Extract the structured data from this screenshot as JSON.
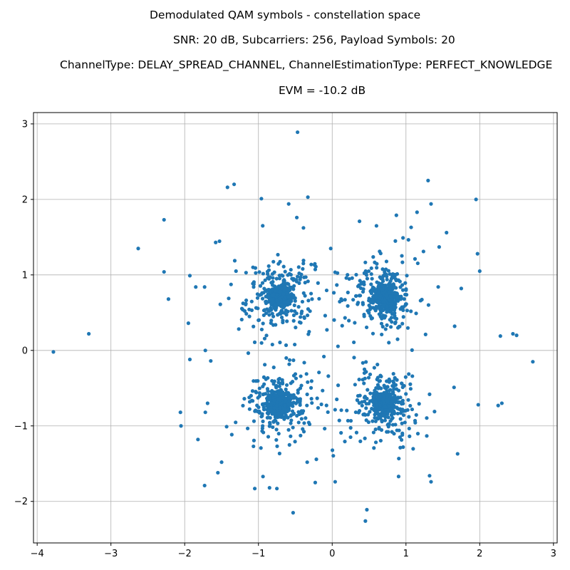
{
  "chart_data": {
    "type": "scatter",
    "title_lines": [
      "Demodulated QAM symbols - constellation space",
      "SNR: 20 dB, Subcarriers: 256, Payload Symbols: 20",
      "ChannelType: DELAY_SPREAD_CHANNEL, ChannelEstimationType: PERFECT_KNOWLEDGE",
      "EVM = -10.2 dB"
    ],
    "xlabel": "",
    "ylabel": "",
    "xlim": [
      -4.05,
      3.05
    ],
    "ylim": [
      -2.55,
      3.15
    ],
    "xticks": [
      -4,
      -3,
      -2,
      -1,
      0,
      1,
      2,
      3
    ],
    "yticks": [
      -2,
      -1,
      0,
      1,
      2,
      3
    ],
    "xtick_labels": [
      "−4",
      "−3",
      "−2",
      "−1",
      "0",
      "1",
      "2",
      "3"
    ],
    "ytick_labels": [
      "−2",
      "−1",
      "0",
      "1",
      "2",
      "3"
    ],
    "grid": true,
    "marker_color": "#1f77b4",
    "clusters": [
      {
        "center": [
          -0.71,
          0.71
        ]
      },
      {
        "center": [
          0.71,
          0.71
        ]
      },
      {
        "center": [
          -0.71,
          -0.71
        ]
      },
      {
        "center": [
          0.71,
          -0.71
        ]
      }
    ],
    "outliers": [
      [
        -3.78,
        -0.02
      ],
      [
        -3.3,
        0.22
      ],
      [
        -2.63,
        1.35
      ],
      [
        -2.28,
        1.73
      ],
      [
        -2.28,
        1.04
      ],
      [
        -2.22,
        0.68
      ],
      [
        -1.95,
        0.36
      ],
      [
        -1.93,
        0.99
      ],
      [
        -1.93,
        -0.12
      ],
      [
        -2.05,
        -1.0
      ],
      [
        -1.82,
        -1.18
      ],
      [
        -1.85,
        0.84
      ],
      [
        -1.73,
        0.84
      ],
      [
        -1.73,
        -1.79
      ],
      [
        -1.72,
        -0.82
      ],
      [
        -1.72,
        0.0
      ],
      [
        -1.58,
        1.43
      ],
      [
        -1.55,
        -1.62
      ],
      [
        -1.42,
        2.16
      ],
      [
        -1.33,
        2.2
      ],
      [
        -0.96,
        2.01
      ],
      [
        -0.59,
        1.94
      ],
      [
        -0.48,
        1.76
      ],
      [
        -0.47,
        2.89
      ],
      [
        -0.33,
        2.03
      ],
      [
        -0.53,
        -2.15
      ],
      [
        1.3,
        2.25
      ],
      [
        1.34,
        1.94
      ],
      [
        1.95,
        2.0
      ],
      [
        1.97,
        1.28
      ],
      [
        2.0,
        1.05
      ],
      [
        1.75,
        0.82
      ],
      [
        1.66,
        0.32
      ],
      [
        2.28,
        0.19
      ],
      [
        2.45,
        0.22
      ],
      [
        2.5,
        0.2
      ],
      [
        2.72,
        -0.15
      ],
      [
        2.25,
        -0.73
      ],
      [
        2.3,
        -0.7
      ],
      [
        1.98,
        -0.72
      ],
      [
        1.7,
        -1.37
      ],
      [
        1.32,
        -1.66
      ],
      [
        1.34,
        -1.74
      ],
      [
        0.47,
        -2.11
      ],
      [
        0.45,
        -2.26
      ],
      [
        0.9,
        -1.67
      ],
      [
        -0.85,
        -1.82
      ],
      [
        -0.75,
        -1.83
      ],
      [
        -1.05,
        -1.83
      ],
      [
        0.04,
        -1.74
      ],
      [
        -0.23,
        -1.75
      ],
      [
        1.55,
        1.56
      ],
      [
        1.45,
        1.37
      ],
      [
        1.15,
        1.83
      ],
      [
        0.87,
        1.79
      ],
      [
        0.6,
        1.65
      ],
      [
        0.37,
        1.71
      ],
      [
        -0.02,
        1.35
      ],
      [
        1.07,
        1.63
      ],
      [
        0.96,
        1.49
      ]
    ]
  }
}
